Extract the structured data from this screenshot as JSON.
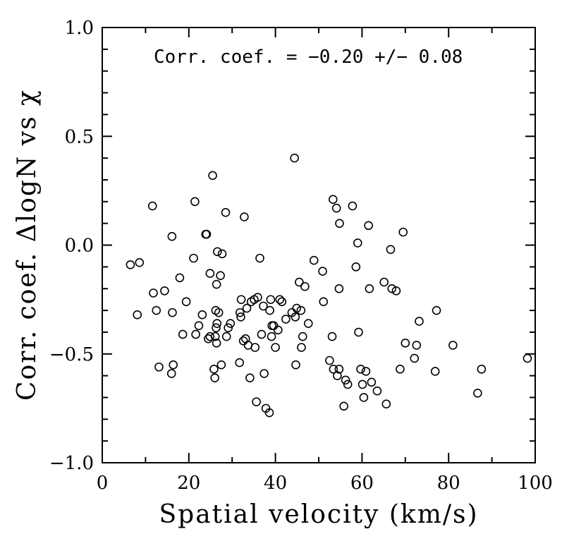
{
  "chart_data": {
    "type": "scatter",
    "title": "",
    "xlabel": "Spatial velocity (km/s)",
    "ylabel": "Corr. coef. ΔlogN vs χ",
    "annotation": "Corr. coef. = −0.20 +/− 0.08",
    "xlim": [
      0,
      100
    ],
    "ylim": [
      -1.0,
      1.0
    ],
    "x_ticks": [
      0,
      20,
      40,
      60,
      80,
      100
    ],
    "x_tick_labels": [
      "0",
      "20",
      "40",
      "60",
      "80",
      "100"
    ],
    "y_ticks": [
      -1.0,
      -0.5,
      0.0,
      0.5,
      1.0
    ],
    "y_tick_labels": [
      "−1.0",
      "−0.5",
      "0.0",
      "0.5",
      "1.0"
    ],
    "grid": false,
    "legend": "none",
    "marker": "open-circle",
    "points": [
      [
        6.5,
        -0.09
      ],
      [
        8.6,
        -0.08
      ],
      [
        8.1,
        -0.32
      ],
      [
        11.6,
        0.18
      ],
      [
        11.8,
        -0.22
      ],
      [
        12.5,
        -0.3
      ],
      [
        13.1,
        -0.56
      ],
      [
        14.4,
        -0.21
      ],
      [
        16.0,
        -0.59
      ],
      [
        16.1,
        0.04
      ],
      [
        16.2,
        -0.31
      ],
      [
        16.4,
        -0.55
      ],
      [
        17.9,
        -0.15
      ],
      [
        18.6,
        -0.41
      ],
      [
        19.4,
        -0.26
      ],
      [
        21.1,
        -0.06
      ],
      [
        21.4,
        0.2
      ],
      [
        21.6,
        -0.41
      ],
      [
        22.3,
        -0.37
      ],
      [
        23.1,
        -0.32
      ],
      [
        23.9,
        0.05
      ],
      [
        24.1,
        0.05
      ],
      [
        24.5,
        -0.43
      ],
      [
        24.9,
        -0.42
      ],
      [
        24.9,
        -0.13
      ],
      [
        25.5,
        0.32
      ],
      [
        25.8,
        -0.57
      ],
      [
        26.0,
        -0.61
      ],
      [
        26.1,
        -0.42
      ],
      [
        26.2,
        -0.3
      ],
      [
        26.3,
        -0.38
      ],
      [
        26.4,
        -0.18
      ],
      [
        26.4,
        -0.45
      ],
      [
        26.5,
        -0.36
      ],
      [
        26.6,
        -0.03
      ],
      [
        26.9,
        -0.31
      ],
      [
        27.3,
        -0.14
      ],
      [
        27.5,
        -0.55
      ],
      [
        27.7,
        -0.04
      ],
      [
        28.5,
        0.15
      ],
      [
        28.7,
        -0.42
      ],
      [
        29.1,
        -0.38
      ],
      [
        29.6,
        -0.36
      ],
      [
        31.7,
        -0.54
      ],
      [
        31.8,
        -0.31
      ],
      [
        32.0,
        -0.33
      ],
      [
        32.1,
        -0.25
      ],
      [
        32.6,
        -0.44
      ],
      [
        32.8,
        0.13
      ],
      [
        33.1,
        -0.43
      ],
      [
        33.4,
        -0.29
      ],
      [
        33.7,
        -0.46
      ],
      [
        34.1,
        -0.61
      ],
      [
        34.4,
        -0.26
      ],
      [
        35.1,
        -0.25
      ],
      [
        35.3,
        -0.47
      ],
      [
        35.6,
        -0.72
      ],
      [
        35.9,
        -0.24
      ],
      [
        36.4,
        -0.06
      ],
      [
        36.8,
        -0.41
      ],
      [
        37.2,
        -0.28
      ],
      [
        37.4,
        -0.59
      ],
      [
        37.8,
        -0.75
      ],
      [
        38.6,
        -0.77
      ],
      [
        38.7,
        -0.3
      ],
      [
        38.9,
        -0.25
      ],
      [
        39.1,
        -0.42
      ],
      [
        39.2,
        -0.37
      ],
      [
        39.6,
        -0.37
      ],
      [
        40.0,
        -0.47
      ],
      [
        40.6,
        -0.39
      ],
      [
        41.0,
        -0.25
      ],
      [
        41.5,
        -0.26
      ],
      [
        42.4,
        -0.34
      ],
      [
        43.8,
        -0.31
      ],
      [
        44.4,
        0.4
      ],
      [
        44.6,
        -0.33
      ],
      [
        44.7,
        -0.55
      ],
      [
        44.9,
        -0.29
      ],
      [
        45.5,
        -0.17
      ],
      [
        45.9,
        -0.3
      ],
      [
        46.0,
        -0.47
      ],
      [
        46.3,
        -0.42
      ],
      [
        46.8,
        -0.19
      ],
      [
        47.6,
        -0.36
      ],
      [
        48.9,
        -0.07
      ],
      [
        50.9,
        -0.12
      ],
      [
        51.1,
        -0.26
      ],
      [
        52.5,
        -0.53
      ],
      [
        53.1,
        -0.42
      ],
      [
        53.3,
        0.21
      ],
      [
        53.4,
        -0.57
      ],
      [
        54.1,
        0.17
      ],
      [
        54.3,
        -0.6
      ],
      [
        54.7,
        -0.2
      ],
      [
        54.7,
        -0.57
      ],
      [
        54.8,
        0.1
      ],
      [
        55.8,
        -0.74
      ],
      [
        56.2,
        -0.62
      ],
      [
        56.7,
        -0.64
      ],
      [
        57.8,
        0.18
      ],
      [
        58.6,
        -0.1
      ],
      [
        59.0,
        0.01
      ],
      [
        59.2,
        -0.4
      ],
      [
        59.7,
        -0.57
      ],
      [
        60.1,
        -0.64
      ],
      [
        60.4,
        -0.7
      ],
      [
        60.9,
        -0.58
      ],
      [
        61.5,
        0.09
      ],
      [
        61.7,
        -0.2
      ],
      [
        62.2,
        -0.63
      ],
      [
        63.5,
        -0.67
      ],
      [
        65.1,
        -0.17
      ],
      [
        65.6,
        -0.73
      ],
      [
        66.6,
        -0.02
      ],
      [
        66.9,
        -0.2
      ],
      [
        67.9,
        -0.21
      ],
      [
        68.8,
        -0.57
      ],
      [
        69.5,
        0.06
      ],
      [
        70.0,
        -0.45
      ],
      [
        72.1,
        -0.52
      ],
      [
        72.6,
        -0.46
      ],
      [
        73.2,
        -0.35
      ],
      [
        76.9,
        -0.58
      ],
      [
        77.2,
        -0.3
      ],
      [
        81.0,
        -0.46
      ],
      [
        86.7,
        -0.68
      ],
      [
        87.6,
        -0.57
      ],
      [
        98.2,
        -0.52
      ]
    ]
  }
}
